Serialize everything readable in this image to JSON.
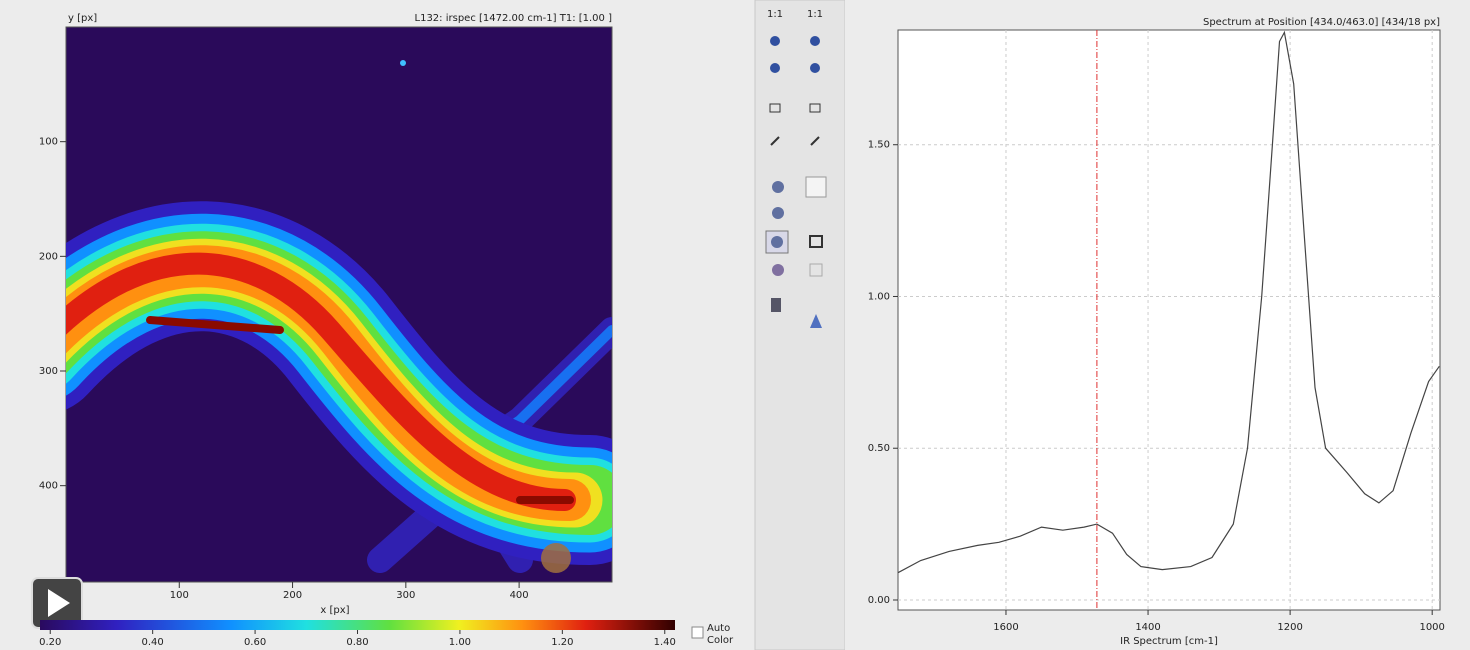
{
  "toolbar": {
    "labels": [
      "1:1",
      "1:1"
    ]
  },
  "image_panel": {
    "y_label": "y [px]",
    "status": "L132: irspec [1472.00 cm-1] T1: [1.00 ]",
    "x_label": "x [px]",
    "xlim": [
      0,
      482
    ],
    "ylim": [
      0,
      484
    ],
    "xticks": [
      100,
      200,
      300,
      400
    ],
    "yticks": [
      100,
      200,
      300,
      400
    ],
    "colorbar": {
      "lim": [
        0.18,
        1.42
      ],
      "ticks": [
        {
          "value": 0.2,
          "label": "0.20"
        },
        {
          "value": 0.4,
          "label": "0.40"
        },
        {
          "value": 0.6,
          "label": "0.60"
        },
        {
          "value": 0.8,
          "label": "0.80"
        },
        {
          "value": 1.0,
          "label": "1.00"
        },
        {
          "value": 1.2,
          "label": "1.20"
        },
        {
          "value": 1.4,
          "label": "1.40"
        }
      ]
    },
    "auto_color": [
      "Auto",
      "Color"
    ]
  },
  "spectrum_panel": {
    "type": "line",
    "title": "Spectrum at Position [434.0/463.0] [434/18 px]",
    "x_label": "IR Spectrum [cm-1]",
    "x": [
      1752,
      1720,
      1680,
      1640,
      1610,
      1580,
      1550,
      1520,
      1490,
      1472,
      1450,
      1430,
      1410,
      1380,
      1340,
      1310,
      1280,
      1260,
      1240,
      1225,
      1215,
      1208,
      1195,
      1180,
      1165,
      1150,
      1120,
      1095,
      1075,
      1055,
      1030,
      1005,
      990
    ],
    "values": [
      0.09,
      0.13,
      0.16,
      0.18,
      0.19,
      0.21,
      0.24,
      0.23,
      0.24,
      0.25,
      0.22,
      0.15,
      0.11,
      0.1,
      0.11,
      0.14,
      0.25,
      0.5,
      1.0,
      1.5,
      1.84,
      1.87,
      1.7,
      1.2,
      0.7,
      0.5,
      0.42,
      0.35,
      0.32,
      0.36,
      0.55,
      0.72,
      0.77
    ],
    "xlim": [
      1752,
      989
    ],
    "ylim": [
      -0.033,
      1.878
    ],
    "xticks": [
      1600,
      1400,
      1200,
      1000
    ],
    "yticks": [
      {
        "value": 0,
        "label": "0.00"
      },
      {
        "value": 0.5,
        "label": "0.50"
      },
      {
        "value": 1.0,
        "label": "1.00"
      },
      {
        "value": 1.5,
        "label": "1.50"
      }
    ],
    "marker_x": 1472,
    "grid": true,
    "line_color": "#444444",
    "marker_color": "#e03030"
  }
}
